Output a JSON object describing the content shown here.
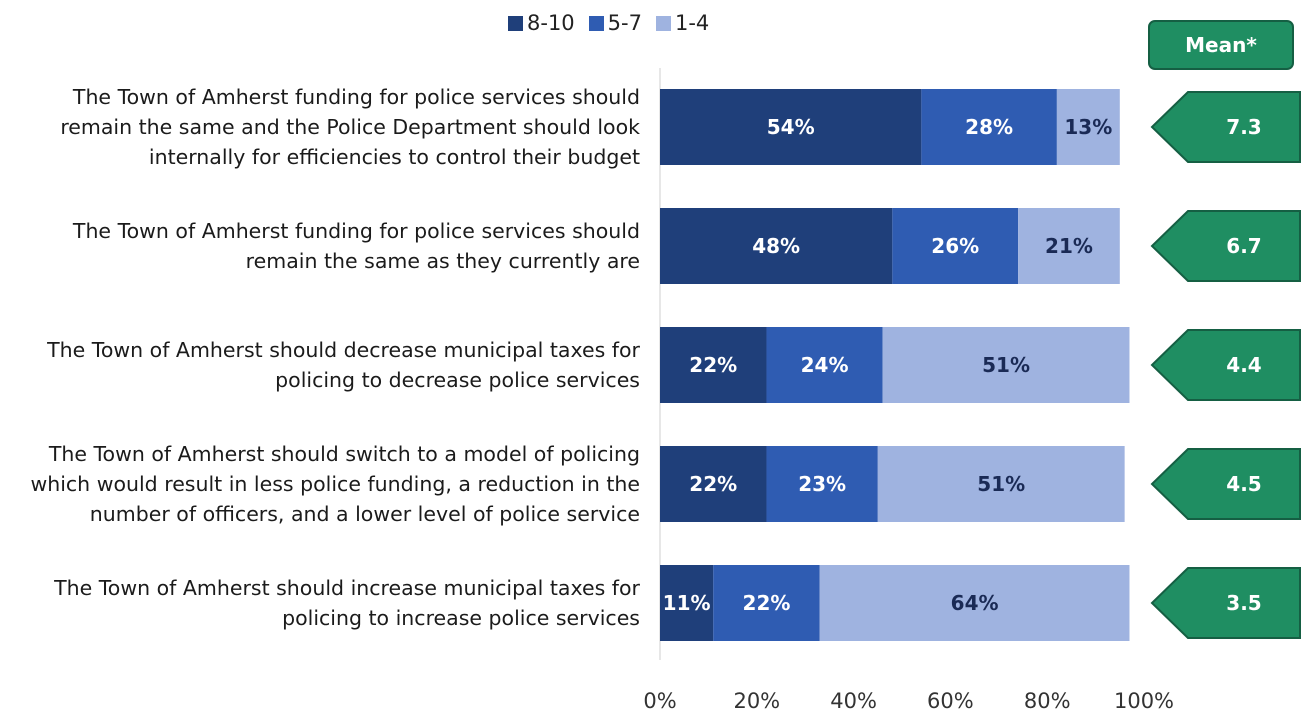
{
  "chart_data": {
    "type": "bar",
    "orientation": "horizontal",
    "stacked": true,
    "categories": [
      "The Town of Amherst funding for police services should remain the same and the Police Department should look internally for efficiencies to control their budget",
      "The Town of Amherst funding for police services should remain the same as they currently are",
      "The Town of Amherst should decrease municipal taxes for policing to decrease police services",
      "The Town of Amherst should switch to a model of policing which would result in less police funding, a reduction in the number of officers, and a lower level of police service",
      "The Town of Amherst should increase municipal taxes for policing to increase police services"
    ],
    "category_lines": [
      [
        "The Town of Amherst funding for police services should",
        "remain the same and the Police Department should look",
        "internally for efficiencies to control their budget"
      ],
      [
        "The Town of Amherst funding for police services should",
        "remain the same as they currently are"
      ],
      [
        "The Town of Amherst should decrease municipal taxes for",
        "policing to decrease police services"
      ],
      [
        "The Town of Amherst should switch to a model of policing",
        "which would result in less police funding, a reduction in the",
        "number of officers, and a lower level of police service"
      ],
      [
        "The Town of Amherst should increase municipal taxes for",
        "policing to increase police services"
      ]
    ],
    "series": [
      {
        "name": "8-10",
        "values": [
          54,
          48,
          22,
          22,
          11
        ],
        "labels": [
          "54%",
          "48%",
          "22%",
          "22%",
          "11%"
        ],
        "color": "#1f3f7a"
      },
      {
        "name": "5-7",
        "values": [
          28,
          26,
          24,
          23,
          22
        ],
        "labels": [
          "28%",
          "26%",
          "24%",
          "23%",
          "22%"
        ],
        "color": "#2f5cb2"
      },
      {
        "name": "1-4",
        "values": [
          13,
          21,
          51,
          51,
          64
        ],
        "labels": [
          "13%",
          "21%",
          "51%",
          "51%",
          "64%"
        ],
        "color": "#9fb3e0"
      }
    ],
    "xlim": [
      0,
      100
    ],
    "x_ticks": [
      "0%",
      "20%",
      "40%",
      "60%",
      "80%",
      "100%"
    ],
    "legend_position": "top",
    "grid": false,
    "mean_header": "Mean*",
    "means": [
      "7.3",
      "6.7",
      "4.4",
      "4.5",
      "3.5"
    ],
    "mean_color": "#1f8e62"
  }
}
